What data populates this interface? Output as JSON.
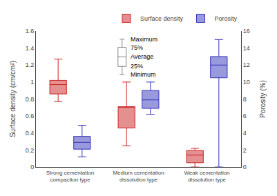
{
  "chart_data": {
    "type": "box",
    "categories": [
      "Strong cementation\ncompaction type",
      "Medium cementation\ndissolution type",
      "Weak cementation\ndissolution type"
    ],
    "series": [
      {
        "name": "Surface density",
        "color": "#cc2222",
        "axis": "y",
        "whisker_low": [
          0.77,
          0.25,
          0.0
        ],
        "q1": [
          0.86,
          0.46,
          0.05
        ],
        "median": [
          0.97,
          0.7,
          0.14
        ],
        "q3": [
          1.02,
          0.71,
          0.195
        ],
        "whisker_high": [
          1.27,
          1.0,
          0.22
        ]
      },
      {
        "name": "Porosity",
        "color": "#3333bb",
        "axis": "y2",
        "whisker_low": [
          1.2,
          6.2,
          0.0
        ],
        "q1": [
          2.1,
          6.9,
          10.5
        ],
        "median": [
          2.9,
          7.9,
          12.0
        ],
        "q3": [
          3.6,
          9.0,
          13.0
        ],
        "whisker_high": [
          4.9,
          10.0,
          15.0
        ]
      }
    ],
    "ylabel": "Surface density (cm/cm²)",
    "y2label": "Porosity (%)",
    "ylim": [
      0,
      1.6
    ],
    "yticks": [
      0,
      0.2,
      0.4,
      0.6,
      0.8,
      1,
      1.2,
      1.4,
      1.6
    ],
    "y2lim": [
      0,
      16
    ],
    "y2ticks": [
      0,
      2,
      4,
      6,
      8,
      10,
      12,
      14,
      16
    ],
    "annotations": [
      "Maximum",
      "75%",
      "Average",
      "25%",
      "Minimum"
    ],
    "legend": "upper right",
    "grid": false
  }
}
